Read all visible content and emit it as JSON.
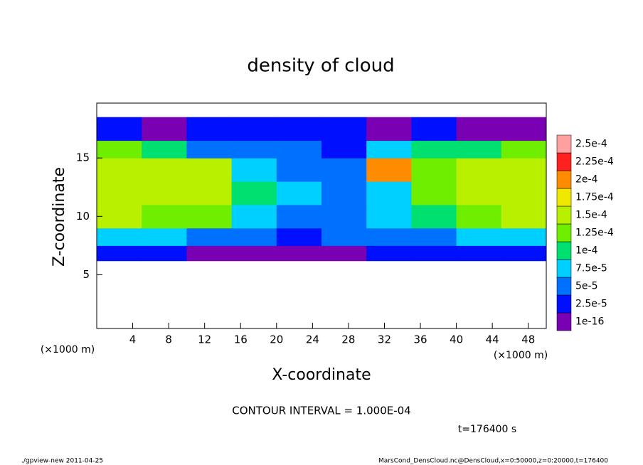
{
  "chart_data": {
    "type": "heatmap",
    "title": "density of cloud",
    "xlabel": "X-coordinate",
    "ylabel": "Z-coordinate",
    "x_unit": "(×1000 m)",
    "y_unit": "(×1000 m)",
    "contour_note": "CONTOUR INTERVAL = 1.000E-04",
    "time_label": "t=176400 s",
    "xlim": [
      0,
      50
    ],
    "ylim": [
      0.4,
      19.7
    ],
    "xticks": [
      4,
      8,
      12,
      16,
      20,
      24,
      28,
      32,
      36,
      40,
      44,
      48
    ],
    "yticks": [
      5,
      10,
      15
    ],
    "xbins": [
      0,
      5,
      10,
      15,
      20,
      25,
      30,
      35,
      40,
      45,
      50
    ],
    "ybins": [
      6.2,
      7.5,
      9,
      11,
      13,
      15,
      16.5,
      18.5
    ],
    "values": [
      [
        3e-05,
        3e-05,
        2e-05,
        2e-05,
        1e-05,
        2e-05,
        3e-05,
        3e-05,
        3e-05,
        3e-05
      ],
      [
        8e-05,
        8e-05,
        7e-05,
        6e-05,
        4e-05,
        5e-05,
        6e-05,
        6e-05,
        8e-05,
        8e-05
      ],
      [
        0.00015,
        0.00014,
        0.00013,
        8e-05,
        6e-05,
        6e-05,
        8e-05,
        0.00011,
        0.00014,
        0.00016
      ],
      [
        0.00016,
        0.00016,
        0.00017,
        0.0001,
        8e-05,
        6e-05,
        9e-05,
        0.00014,
        0.00015,
        0.00016
      ],
      [
        0.00016,
        0.00016,
        0.00017,
        8e-05,
        7e-05,
        6e-05,
        0.00021,
        0.00014,
        0.00015,
        0.00016
      ],
      [
        0.00013,
        0.00012,
        6e-05,
        5e-05,
        5e-05,
        4e-05,
        8e-05,
        0.00011,
        0.00012,
        0.00013
      ],
      [
        3e-05,
        2e-05,
        3e-05,
        3e-05,
        3e-05,
        4e-05,
        2e-05,
        3e-05,
        2e-05,
        2e-05
      ]
    ],
    "levels": [
      {
        "value": 1e-16,
        "label": "1e-16"
      },
      {
        "value": 2.5e-05,
        "label": "2.5e-5"
      },
      {
        "value": 5e-05,
        "label": "5e-5"
      },
      {
        "value": 7.5e-05,
        "label": "7.5e-5"
      },
      {
        "value": 0.0001,
        "label": "1e-4"
      },
      {
        "value": 0.000125,
        "label": "1.25e-4"
      },
      {
        "value": 0.00015,
        "label": "1.5e-4"
      },
      {
        "value": 0.000175,
        "label": "1.75e-4"
      },
      {
        "value": 0.0002,
        "label": "2e-4"
      },
      {
        "value": 0.000225,
        "label": "2.25e-4"
      },
      {
        "value": 0.00025,
        "label": "2.5e-4"
      }
    ],
    "colors": [
      "#7a00b4",
      "#0010ff",
      "#0070ff",
      "#00d0ff",
      "#00e070",
      "#70ee00",
      "#b8f000",
      "#f0e800",
      "#ff8c00",
      "#ff2020",
      "#ffa0a0"
    ]
  },
  "footer": {
    "left": "./gpview-new   2011-04-25",
    "right": "MarsCond_DensCloud.nc@DensCloud,x=0:50000,z=0:20000,t=176400"
  }
}
